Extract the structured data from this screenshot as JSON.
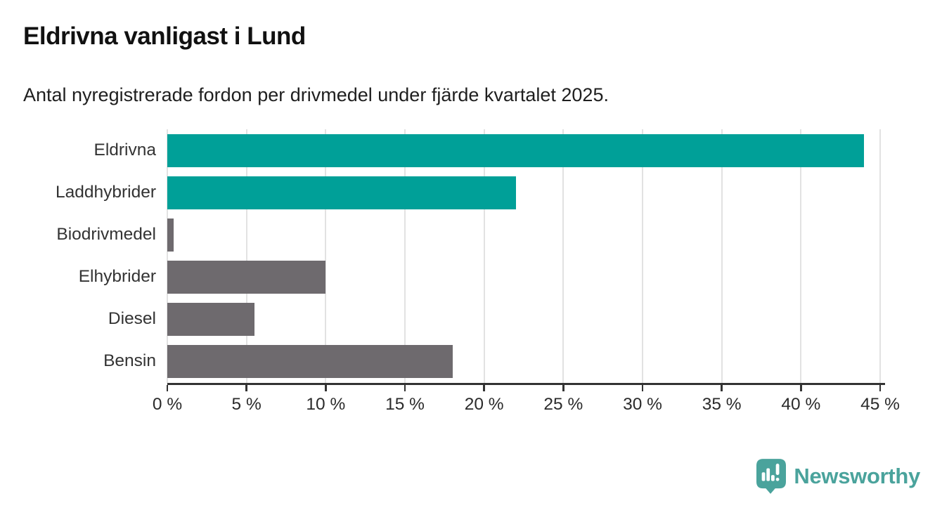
{
  "header": {
    "title": "Eldrivna vanligast i Lund",
    "subtitle": "Antal nyregistrerade fordon per drivmedel under fjärde kvartalet 2025."
  },
  "chart_data": {
    "type": "bar",
    "orientation": "horizontal",
    "title": "Eldrivna vanligast i Lund",
    "subtitle": "Antal nyregistrerade fordon per drivmedel under fjärde kvartalet 2025.",
    "categories": [
      "Eldrivna",
      "Laddhybrider",
      "Biodrivmedel",
      "Elhybrider",
      "Diesel",
      "Bensin"
    ],
    "values": [
      44,
      22,
      0.4,
      10,
      5.5,
      18
    ],
    "unit": "%",
    "xlim": [
      0,
      45
    ],
    "xticks": [
      0,
      5,
      10,
      15,
      20,
      25,
      30,
      35,
      40,
      45
    ],
    "xtick_suffix": " %",
    "grid": true,
    "legend": "none",
    "bar_colors": [
      "#00a098",
      "#00a098",
      "#6e6a6e",
      "#6e6a6e",
      "#6e6a6e",
      "#6e6a6e"
    ],
    "colors": {
      "highlight": "#00a098",
      "default_bar": "#6e6a6e",
      "gridline": "#e2e2e2",
      "axis": "#333333",
      "label": "#333333"
    }
  },
  "footer": {
    "brand": "Newsworthy",
    "brand_color": "#4aa39c",
    "logo_icon": "newsworthy-speech-bubble-barchart-icon"
  }
}
